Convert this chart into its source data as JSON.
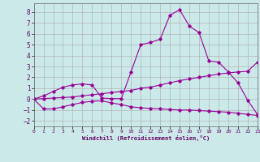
{
  "xlabel": "Windchill (Refroidissement éolien,°C)",
  "ylabel": "",
  "bg_color": "#cce9e9",
  "line_color": "#990099",
  "grid_color": "#aaaaaa",
  "xlim": [
    0,
    23
  ],
  "ylim": [
    -2.5,
    8.8
  ],
  "xticks": [
    0,
    1,
    2,
    3,
    4,
    5,
    6,
    7,
    8,
    9,
    10,
    11,
    12,
    13,
    14,
    15,
    16,
    17,
    18,
    19,
    20,
    21,
    22,
    23
  ],
  "yticks": [
    -2,
    -1,
    0,
    1,
    2,
    3,
    4,
    5,
    6,
    7,
    8
  ],
  "line1_x": [
    0,
    1,
    2,
    3,
    4,
    5,
    6,
    7,
    8,
    9,
    10,
    11,
    12,
    13,
    14,
    15,
    16,
    17,
    18,
    19,
    20,
    21,
    22,
    23
  ],
  "line1_y": [
    0.0,
    0.3,
    0.7,
    1.1,
    1.3,
    1.4,
    1.3,
    0.1,
    0.05,
    0.05,
    2.5,
    5.0,
    5.2,
    5.5,
    7.7,
    8.2,
    6.7,
    6.1,
    3.5,
    3.4,
    2.5,
    1.5,
    -0.1,
    -1.4
  ],
  "line2_x": [
    0,
    1,
    2,
    3,
    4,
    5,
    6,
    7,
    8,
    9,
    10,
    11,
    12,
    13,
    14,
    15,
    16,
    17,
    18,
    19,
    20,
    21,
    22,
    23
  ],
  "line2_y": [
    0.0,
    -0.9,
    -0.9,
    -0.7,
    -0.5,
    -0.3,
    -0.2,
    -0.15,
    -0.35,
    -0.5,
    -0.7,
    -0.8,
    -0.85,
    -0.9,
    -0.95,
    -1.0,
    -1.0,
    -1.05,
    -1.1,
    -1.15,
    -1.2,
    -1.3,
    -1.4,
    -1.5
  ],
  "line3_x": [
    0,
    1,
    2,
    3,
    4,
    5,
    6,
    7,
    8,
    9,
    10,
    11,
    12,
    13,
    14,
    15,
    16,
    17,
    18,
    19,
    20,
    21,
    22,
    23
  ],
  "line3_y": [
    0.0,
    0.05,
    0.1,
    0.15,
    0.2,
    0.3,
    0.4,
    0.5,
    0.6,
    0.7,
    0.8,
    1.0,
    1.1,
    1.3,
    1.5,
    1.7,
    1.85,
    2.0,
    2.15,
    2.3,
    2.4,
    2.5,
    2.55,
    3.4
  ]
}
